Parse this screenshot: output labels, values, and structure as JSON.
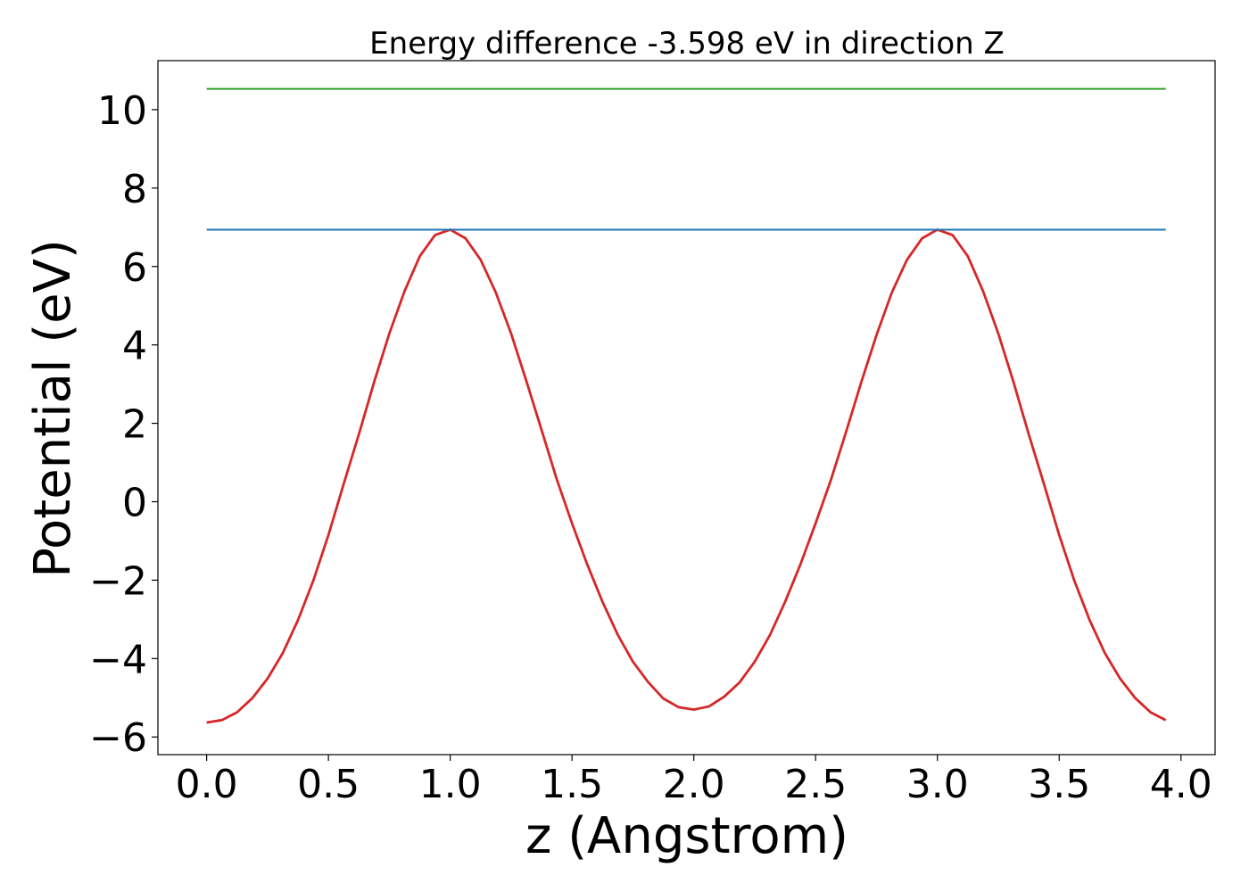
{
  "chart_data": {
    "type": "line",
    "title": "Energy difference -3.598 eV in direction Z",
    "xlabel": "z (Angstrom)",
    "ylabel": "Potential (eV)",
    "xlim": [
      -0.2,
      4.14
    ],
    "ylim": [
      -6.45,
      11.25
    ],
    "x_ticks": [
      0.0,
      0.5,
      1.0,
      1.5,
      2.0,
      2.5,
      3.0,
      3.5,
      4.0
    ],
    "x_tick_labels": [
      "0.0",
      "0.5",
      "1.0",
      "1.5",
      "2.0",
      "2.5",
      "3.0",
      "3.5",
      "4.0"
    ],
    "y_ticks": [
      -6,
      -4,
      -2,
      0,
      2,
      4,
      6,
      8,
      10
    ],
    "y_tick_labels": [
      "−6",
      "−4",
      "−2",
      "0",
      "2",
      "4",
      "6",
      "8",
      "10"
    ],
    "grid": false,
    "series": [
      {
        "color": "#d62728",
        "kind": "curve",
        "x": [
          0.0,
          0.0625,
          0.125,
          0.1875,
          0.25,
          0.3125,
          0.375,
          0.4375,
          0.5,
          0.5625,
          0.625,
          0.6875,
          0.75,
          0.8125,
          0.875,
          0.9375,
          1.0,
          1.0625,
          1.125,
          1.1875,
          1.25,
          1.3125,
          1.375,
          1.4375,
          1.5,
          1.5625,
          1.625,
          1.6875,
          1.75,
          1.8125,
          1.875,
          1.9375,
          2.0,
          2.0625,
          2.125,
          2.1875,
          2.25,
          2.3125,
          2.375,
          2.4375,
          2.5,
          2.5625,
          2.625,
          2.6875,
          2.75,
          2.8125,
          2.875,
          2.9375,
          3.0,
          3.0625,
          3.125,
          3.1875,
          3.25,
          3.3125,
          3.375,
          3.4375,
          3.5,
          3.5625,
          3.625,
          3.6875,
          3.75,
          3.8125,
          3.875,
          3.9375
        ],
        "y": [
          -5.63,
          -5.57,
          -5.37,
          -5.01,
          -4.51,
          -3.86,
          -3.02,
          -2.02,
          -0.85,
          0.45,
          1.72,
          3.05,
          4.29,
          5.37,
          6.26,
          6.8,
          6.94,
          6.72,
          6.17,
          5.33,
          4.29,
          3.08,
          1.83,
          0.57,
          -0.55,
          -1.6,
          -2.55,
          -3.39,
          -4.08,
          -4.6,
          -5.02,
          -5.24,
          -5.3,
          -5.22,
          -4.97,
          -4.61,
          -4.08,
          -3.4,
          -2.55,
          -1.6,
          -0.55,
          0.55,
          1.78,
          3.05,
          4.25,
          5.33,
          6.17,
          6.72,
          6.94,
          6.8,
          6.26,
          5.37,
          4.29,
          3.05,
          1.72,
          0.45,
          -0.85,
          -2.02,
          -3.02,
          -3.86,
          -4.51,
          -5.01,
          -5.37,
          -5.57
        ]
      },
      {
        "color": "#1f77b4",
        "kind": "hline",
        "x": [
          0.0,
          3.9375
        ],
        "y": [
          6.94,
          6.94
        ]
      },
      {
        "color": "#2ca02c",
        "kind": "hline",
        "x": [
          0.0,
          3.9375
        ],
        "y": [
          10.53,
          10.53
        ]
      }
    ]
  }
}
